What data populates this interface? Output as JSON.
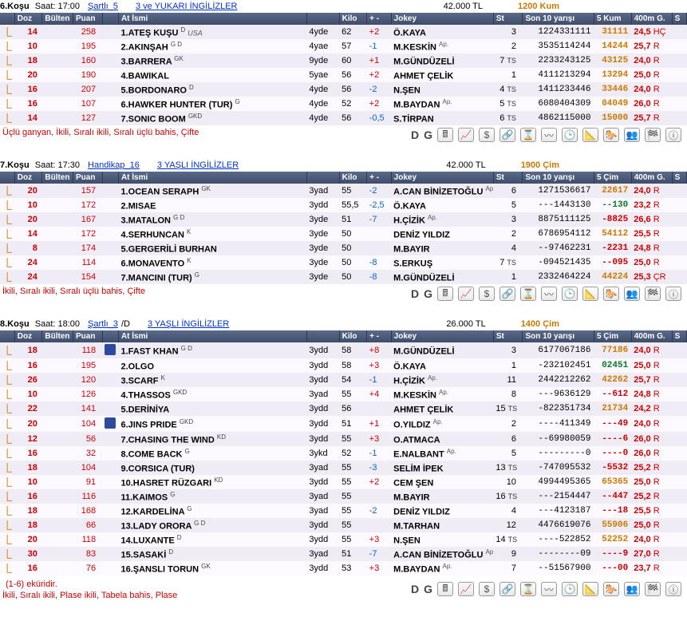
{
  "races": [
    {
      "kosu": "6.Koşu",
      "saat_label": "Saat:",
      "saat": "17:00",
      "cond_link": "Şartlı_5",
      "class_link": "3 ve YUKARI İNGİLİZLER",
      "prize": "42.000 TL",
      "track": "1200 Kum",
      "headers": {
        "doz": "Doz",
        "bul": "Bülten",
        "puan": "Puan",
        "at": "At İsmi",
        "kilo": "Kilo",
        "pm": "+ -",
        "jokey": "Jokey",
        "st": "St",
        "son10": "Son 10 yarışı",
        "form": "5 Kum",
        "g400": "400m G.",
        "s": "S"
      },
      "rows": [
        {
          "doz": "14",
          "puan": "258",
          "silk": null,
          "num": "1.",
          "name": "ATEŞ KUŞU",
          "sup": "D",
          "country": "USA",
          "age": "4yde",
          "kilo": "62",
          "pm": "+2",
          "pmCls": "pm-pos",
          "jokey": "Ö.KAYA",
          "jsup": "",
          "st": "3",
          "son10": "1224331111",
          "form": "31111",
          "formCls": "form-gold",
          "g400": "24,5",
          "gsuf": "HÇ"
        },
        {
          "doz": "10",
          "puan": "195",
          "silk": null,
          "num": "2.",
          "name": "AKINŞAH",
          "sup": "G D",
          "country": "",
          "age": "4yae",
          "kilo": "57",
          "pm": "-1",
          "pmCls": "pm-neg",
          "jokey": "M.KESKİN",
          "jsup": "Ap.",
          "st": "2",
          "son10": "3535114244",
          "form": "14244",
          "formCls": "form-gold",
          "g400": "25,7",
          "gsuf": "R"
        },
        {
          "doz": "18",
          "puan": "160",
          "silk": null,
          "num": "3.",
          "name": "BARRERA",
          "sup": "GK",
          "country": "",
          "age": "9yde",
          "kilo": "60",
          "pm": "+1",
          "pmCls": "pm-pos",
          "jokey": "M.GÜNDÜZELİ",
          "jsup": "",
          "st": "7 TS",
          "son10": "2233243125",
          "form": "43125",
          "formCls": "form-gold",
          "g400": "24,0",
          "gsuf": "R"
        },
        {
          "doz": "20",
          "puan": "190",
          "silk": null,
          "num": "4.",
          "name": "BAWIKAL",
          "sup": "",
          "country": "",
          "age": "5yae",
          "kilo": "56",
          "pm": "+2",
          "pmCls": "pm-pos",
          "jokey": "AHMET ÇELİK",
          "jsup": "",
          "st": "1",
          "son10": "4111213294",
          "form": "13294",
          "formCls": "form-gold",
          "g400": "25,0",
          "gsuf": "R"
        },
        {
          "doz": "16",
          "puan": "207",
          "silk": null,
          "num": "5.",
          "name": "BORDONARO",
          "sup": "D",
          "country": "",
          "age": "4yde",
          "kilo": "56",
          "pm": "-2",
          "pmCls": "pm-neg",
          "jokey": "N.ŞEN",
          "jsup": "",
          "st": "4 TS",
          "son10": "1411233446",
          "form": "33446",
          "formCls": "form-gold",
          "g400": "24,0",
          "gsuf": "R"
        },
        {
          "doz": "16",
          "puan": "107",
          "silk": null,
          "num": "6.",
          "name": "HAWKER HUNTER (TUR)",
          "sup": "G",
          "country": "",
          "age": "4yde",
          "kilo": "52",
          "pm": "+2",
          "pmCls": "pm-pos",
          "jokey": "M.BAYDAN",
          "jsup": "Ap.",
          "st": "5 TS",
          "son10": "6080404309",
          "form": "04049",
          "formCls": "form-gold",
          "g400": "26,0",
          "gsuf": "R"
        },
        {
          "doz": "14",
          "puan": "127",
          "silk": null,
          "num": "7.",
          "name": "SONIC BOOM",
          "sup": "GKD",
          "country": "",
          "age": "4yde",
          "kilo": "56",
          "pm": "-0,5",
          "pmCls": "pm-neg",
          "jokey": "S.TİRPAN",
          "jsup": "",
          "st": "6 TS",
          "son10": "4862115000",
          "form": "15000",
          "formCls": "form-gold",
          "g400": "25,7",
          "gsuf": "R"
        }
      ],
      "bets": "Üçlü ganyan, İkili, Sıralı ikili, Sıralı üçlü bahis, Çifte",
      "ekuri": ""
    },
    {
      "kosu": "7.Koşu",
      "saat_label": "Saat:",
      "saat": "17:30",
      "cond_link": "Handikap_16",
      "class_link": "3 YAŞLI İNGİLİZLER",
      "prize": "42.000 TL",
      "track": "1900 Çim",
      "headers": {
        "doz": "Doz",
        "bul": "Bülten",
        "puan": "Puan",
        "at": "At İsmi",
        "kilo": "Kilo",
        "pm": "+ -",
        "jokey": "Jokey",
        "st": "St",
        "son10": "Son 10 yarışı",
        "form": "5 Çim",
        "g400": "400m G.",
        "s": "S"
      },
      "rows": [
        {
          "doz": "20",
          "puan": "157",
          "silk": null,
          "num": "1.",
          "name": "OCEAN SERAPH",
          "sup": "GK",
          "country": "",
          "age": "3yad",
          "kilo": "55",
          "pm": "-2",
          "pmCls": "pm-neg",
          "jokey": "A.CAN BİNİZETOĞLU",
          "jsup": "Ap.",
          "st": "6",
          "son10": "1271536617",
          "form": "22617",
          "formCls": "form-gold",
          "g400": "24,0",
          "gsuf": "R"
        },
        {
          "doz": "10",
          "puan": "172",
          "silk": null,
          "num": "2.",
          "name": "MISAE",
          "sup": "",
          "country": "",
          "age": "3ydd",
          "kilo": "55,5",
          "pm": "-2,5",
          "pmCls": "pm-neg",
          "jokey": "Ö.KAYA",
          "jsup": "",
          "st": "5",
          "son10": "---1443130",
          "form": "--130",
          "formCls": "form-green",
          "g400": "23,2",
          "gsuf": "R"
        },
        {
          "doz": "20",
          "puan": "167",
          "silk": null,
          "num": "3.",
          "name": "MATALON",
          "sup": "G D",
          "country": "",
          "age": "3yde",
          "kilo": "51",
          "pm": "-7",
          "pmCls": "pm-neg",
          "jokey": "H.ÇİZİK",
          "jsup": "Ap.",
          "st": "3",
          "son10": "8875111125",
          "form": "-8825",
          "formCls": "form-red",
          "g400": "26,6",
          "gsuf": "R"
        },
        {
          "doz": "14",
          "puan": "172",
          "silk": null,
          "num": "4.",
          "name": "SERHUNCAN",
          "sup": "K",
          "country": "",
          "age": "3yde",
          "kilo": "50",
          "pm": "",
          "pmCls": "",
          "jokey": "DENİZ YILDIZ",
          "jsup": "",
          "st": "2",
          "son10": "6786954112",
          "form": "54112",
          "formCls": "form-gold",
          "g400": "25,5",
          "gsuf": "R"
        },
        {
          "doz": "8",
          "puan": "174",
          "silk": null,
          "num": "5.",
          "name": "GERGERİLİ BURHAN",
          "sup": "",
          "country": "",
          "age": "3yde",
          "kilo": "50",
          "pm": "",
          "pmCls": "",
          "jokey": "M.BAYIR",
          "jsup": "",
          "st": "4",
          "son10": "--97462231",
          "form": "-2231",
          "formCls": "form-red",
          "g400": "24,8",
          "gsuf": "R"
        },
        {
          "doz": "24",
          "puan": "114",
          "silk": null,
          "num": "6.",
          "name": "MONAVENTO",
          "sup": "K",
          "country": "",
          "age": "3yde",
          "kilo": "50",
          "pm": "-8",
          "pmCls": "pm-neg",
          "jokey": "S.ERKUŞ",
          "jsup": "",
          "st": "7 TS",
          "son10": "-094521435",
          "form": "--095",
          "formCls": "form-red",
          "g400": "25,0",
          "gsuf": "R"
        },
        {
          "doz": "24",
          "puan": "154",
          "silk": null,
          "num": "7.",
          "name": "MANCINI (TUR)",
          "sup": "G",
          "country": "",
          "age": "3yde",
          "kilo": "50",
          "pm": "-8",
          "pmCls": "pm-neg",
          "jokey": "M.GÜNDÜZELİ",
          "jsup": "",
          "st": "1",
          "son10": "2332464224",
          "form": "44224",
          "formCls": "form-gold",
          "g400": "25,3",
          "gsuf": "ÇR"
        }
      ],
      "bets": "İkili, Sıralı ikili, Sıralı üçlü bahis, Çifte",
      "ekuri": ""
    },
    {
      "kosu": "8.Koşu",
      "saat_label": "Saat:",
      "saat": "18:00",
      "cond_link": "Şartlı_3",
      "cond_extra": "/D",
      "class_link": "3 YAŞLI İNGİLİZLER",
      "prize": "26.000 TL",
      "track": "1400 Çim",
      "headers": {
        "doz": "Doz",
        "bul": "Bülten",
        "puan": "Puan",
        "at": "At İsmi",
        "kilo": "Kilo",
        "pm": "+ -",
        "jokey": "Jokey",
        "st": "St",
        "son10": "Son 10 yarışı",
        "form": "5 Çim",
        "g400": "400m G.",
        "s": "S"
      },
      "rows": [
        {
          "doz": "18",
          "puan": "118",
          "silk": "#2b4aa0",
          "num": "1.",
          "name": "FAST KHAN",
          "sup": "G D",
          "country": "",
          "age": "3ydd",
          "kilo": "58",
          "pm": "+8",
          "pmCls": "pm-pos",
          "jokey": "M.GÜNDÜZELİ",
          "jsup": "",
          "st": "3",
          "son10": "6177067186",
          "form": "77186",
          "formCls": "form-gold",
          "g400": "24,0",
          "gsuf": "R"
        },
        {
          "doz": "16",
          "puan": "195",
          "silk": null,
          "num": "2.",
          "name": "OLGO",
          "sup": "",
          "country": "",
          "age": "3ydd",
          "kilo": "58",
          "pm": "+3",
          "pmCls": "pm-pos",
          "jokey": "Ö.KAYA",
          "jsup": "",
          "st": "1",
          "son10": "-232102451",
          "form": "02451",
          "formCls": "form-green",
          "g400": "25,0",
          "gsuf": "R"
        },
        {
          "doz": "26",
          "puan": "120",
          "silk": null,
          "num": "3.",
          "name": "SCARF",
          "sup": "K",
          "country": "",
          "age": "3ydd",
          "kilo": "54",
          "pm": "-1",
          "pmCls": "pm-neg",
          "jokey": "H.ÇİZİK",
          "jsup": "Ap.",
          "st": "11",
          "son10": "2442212262",
          "form": "42262",
          "formCls": "form-gold",
          "g400": "25,7",
          "gsuf": "R"
        },
        {
          "doz": "10",
          "puan": "126",
          "silk": null,
          "num": "4.",
          "name": "THASSOS",
          "sup": "GKD",
          "country": "",
          "age": "3yad",
          "kilo": "55",
          "pm": "+4",
          "pmCls": "pm-pos",
          "jokey": "M.KESKİN",
          "jsup": "Ap.",
          "st": "8",
          "son10": "---9636129",
          "form": "--612",
          "formCls": "form-red",
          "g400": "24,8",
          "gsuf": "R"
        },
        {
          "doz": "22",
          "puan": "141",
          "silk": null,
          "num": "5.",
          "name": "DERİNİYA",
          "sup": "",
          "country": "",
          "age": "3ydd",
          "kilo": "56",
          "pm": "",
          "pmCls": "",
          "jokey": "AHMET ÇELİK",
          "jsup": "",
          "st": "15 TS",
          "son10": "-822351734",
          "form": "21734",
          "formCls": "form-gold",
          "g400": "24,2",
          "gsuf": "R"
        },
        {
          "doz": "20",
          "puan": "104",
          "silk": "#2b4aa0",
          "num": "6.",
          "name": "JINS PRIDE",
          "sup": "GKD",
          "country": "",
          "age": "3ydd",
          "kilo": "51",
          "pm": "+1",
          "pmCls": "pm-pos",
          "jokey": "O.YILDIZ",
          "jsup": "Ap.",
          "st": "2",
          "son10": "----411349",
          "form": "---49",
          "formCls": "form-red",
          "g400": "24,0",
          "gsuf": "R"
        },
        {
          "doz": "12",
          "puan": "56",
          "silk": null,
          "num": "7.",
          "name": "CHASING THE WIND",
          "sup": "KD",
          "country": "",
          "age": "3ydd",
          "kilo": "55",
          "pm": "+3",
          "pmCls": "pm-pos",
          "jokey": "O.ATMACA",
          "jsup": "",
          "st": "6",
          "son10": "--69980059",
          "form": "----6",
          "formCls": "form-red",
          "g400": "26,0",
          "gsuf": "R"
        },
        {
          "doz": "16",
          "puan": "32",
          "silk": null,
          "num": "8.",
          "name": "COME BACK",
          "sup": "G",
          "country": "",
          "age": "3ykd",
          "kilo": "52",
          "pm": "-1",
          "pmCls": "pm-neg",
          "jokey": "E.NALBANT",
          "jsup": "Ap.",
          "st": "5",
          "son10": "---------0",
          "form": "----0",
          "formCls": "form-red",
          "g400": "26,0",
          "gsuf": "R"
        },
        {
          "doz": "18",
          "puan": "104",
          "silk": null,
          "num": "9.",
          "name": "CORSICA (TUR)",
          "sup": "",
          "country": "",
          "age": "3yad",
          "kilo": "55",
          "pm": "-3",
          "pmCls": "pm-neg",
          "jokey": "SELİM İPEK",
          "jsup": "",
          "st": "13 TS",
          "son10": "-747095532",
          "form": "-5532",
          "formCls": "form-red",
          "g400": "25,2",
          "gsuf": "R"
        },
        {
          "doz": "10",
          "puan": "91",
          "silk": null,
          "num": "10.",
          "name": "HASRET RÜZGARI",
          "sup": "KD",
          "country": "",
          "age": "3ydd",
          "kilo": "55",
          "pm": "+2",
          "pmCls": "pm-pos",
          "jokey": "CEM ŞEN",
          "jsup": "",
          "st": "10",
          "son10": "4994495365",
          "form": "65365",
          "formCls": "form-gold",
          "g400": "25,0",
          "gsuf": "R"
        },
        {
          "doz": "16",
          "puan": "116",
          "silk": null,
          "num": "11.",
          "name": "KAIMOS",
          "sup": "G",
          "country": "",
          "age": "3yad",
          "kilo": "55",
          "pm": "",
          "pmCls": "",
          "jokey": "M.BAYIR",
          "jsup": "",
          "st": "16 TS",
          "son10": "---2154447",
          "form": "--447",
          "formCls": "form-red",
          "g400": "25,2",
          "gsuf": "R"
        },
        {
          "doz": "18",
          "puan": "168",
          "silk": null,
          "num": "12.",
          "name": "KARDELİNA",
          "sup": "G",
          "country": "",
          "age": "3yad",
          "kilo": "55",
          "pm": "-2",
          "pmCls": "pm-neg",
          "jokey": "DENİZ YILDIZ",
          "jsup": "",
          "st": "4",
          "son10": "---4123187",
          "form": "---18",
          "formCls": "form-red",
          "g400": "25,5",
          "gsuf": "R"
        },
        {
          "doz": "18",
          "puan": "66",
          "silk": null,
          "num": "13.",
          "name": "LADY ORORA",
          "sup": "G D",
          "country": "",
          "age": "3ydd",
          "kilo": "55",
          "pm": "",
          "pmCls": "",
          "jokey": "M.TARHAN",
          "jsup": "",
          "st": "12",
          "son10": "4476619076",
          "form": "55906",
          "formCls": "form-gold",
          "g400": "25,0",
          "gsuf": "R"
        },
        {
          "doz": "20",
          "puan": "118",
          "silk": null,
          "num": "14.",
          "name": "LUXANTE",
          "sup": "D",
          "country": "",
          "age": "3ydd",
          "kilo": "55",
          "pm": "+3",
          "pmCls": "pm-pos",
          "jokey": "N.ŞEN",
          "jsup": "",
          "st": "14 TS",
          "son10": "----522852",
          "form": "52252",
          "formCls": "form-gold",
          "g400": "24,0",
          "gsuf": "R"
        },
        {
          "doz": "30",
          "puan": "83",
          "silk": null,
          "num": "15.",
          "name": "SASAKİ",
          "sup": "D",
          "country": "",
          "age": "3yad",
          "kilo": "51",
          "pm": "-7",
          "pmCls": "pm-neg",
          "jokey": "A.CAN BİNİZETOĞLU",
          "jsup": "Ap.",
          "st": "9",
          "son10": "--------09",
          "form": "----9",
          "formCls": "form-red",
          "g400": "27,0",
          "gsuf": "R"
        },
        {
          "doz": "16",
          "puan": "76",
          "silk": null,
          "num": "16.",
          "name": "ŞANSLI TORUN",
          "sup": "GK",
          "country": "",
          "age": "3ydd",
          "kilo": "53",
          "pm": "+3",
          "pmCls": "pm-pos",
          "jokey": "M.BAYDAN",
          "jsup": "Ap.",
          "st": "7",
          "son10": "--51567900",
          "form": "---00",
          "formCls": "form-red",
          "g400": "23,7",
          "gsuf": "R"
        }
      ],
      "bets": "İkili, Sıralı ikili, Plase ikili, Tabela bahis, Plase",
      "ekuri": "(1-6) eküridir."
    }
  ],
  "icons": [
    "D",
    "G",
    "calc",
    "chart",
    "$",
    "diag",
    "hourglass",
    "line",
    "clock",
    "math",
    "horses",
    "people",
    "flag",
    "info"
  ]
}
